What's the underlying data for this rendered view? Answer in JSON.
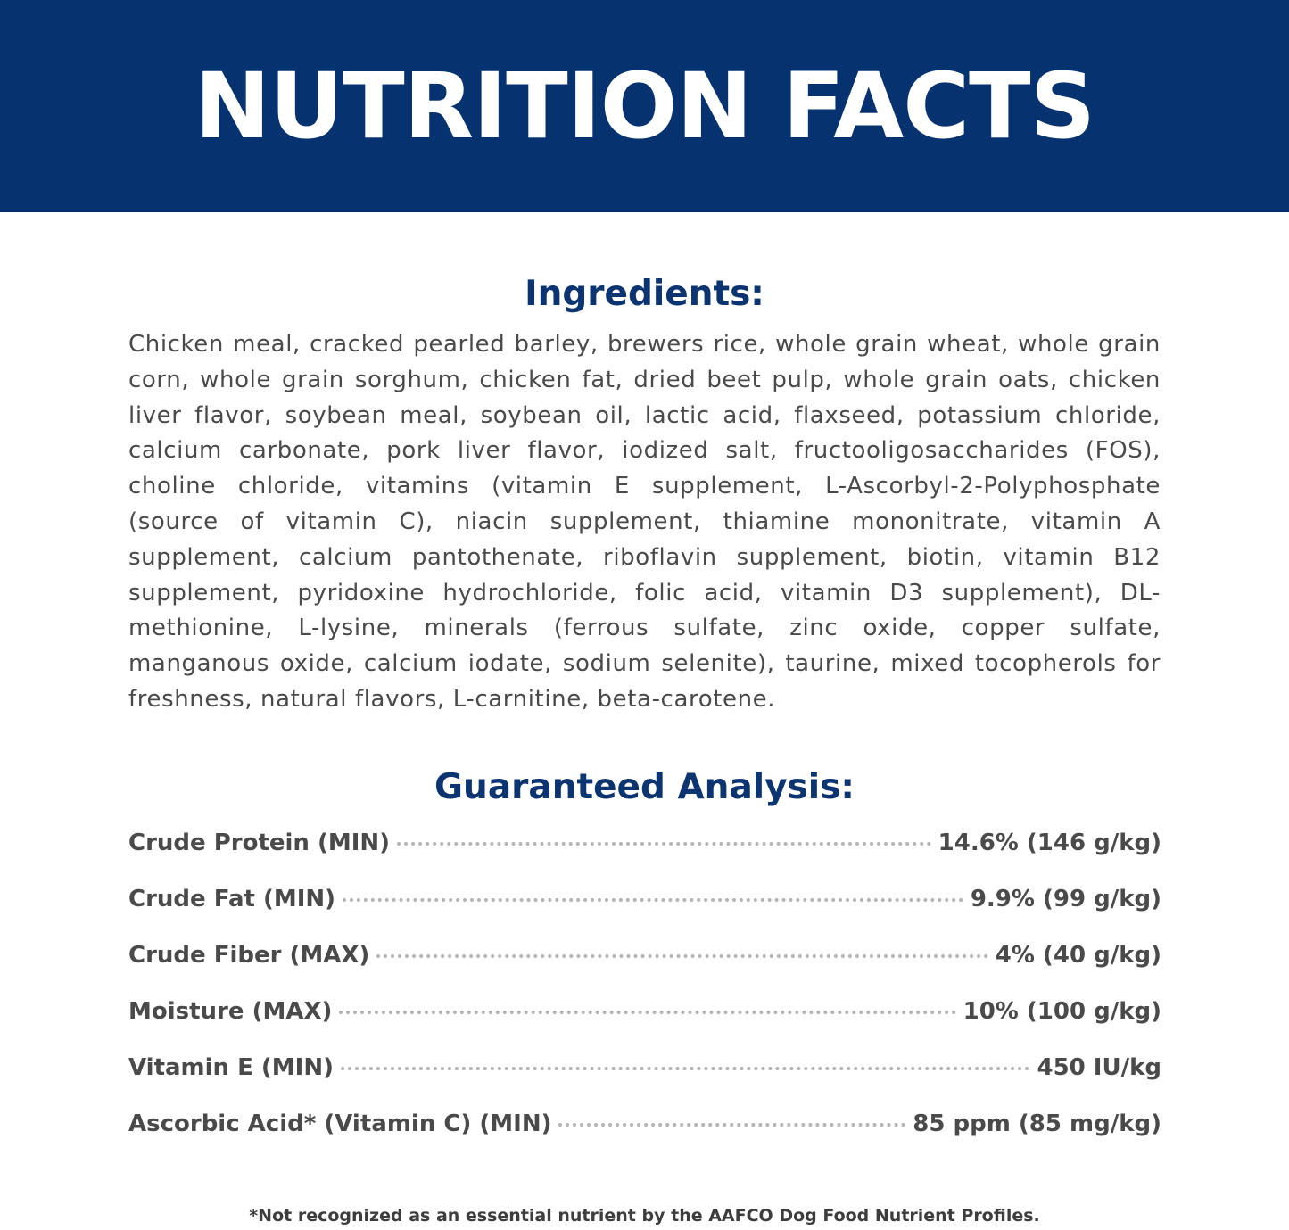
{
  "banner": {
    "title": "NUTRITION FACTS",
    "color": "#06336f"
  },
  "ingredients": {
    "heading": "Ingredients:",
    "text": "Chicken meal, cracked pearled barley, brewers rice, whole grain wheat, whole grain corn, whole grain sorghum, chicken fat, dried beet pulp, whole grain oats, chicken liver flavor, soybean meal, soybean oil, lactic acid, flaxseed, potassium chloride, calcium carbonate, pork liver flavor, iodized salt, fructooligosaccharides (FOS), choline chloride, vitamins (vitamin E supplement, L-Ascorbyl-2-Polyphosphate (source of vitamin C), niacin supplement, thiamine mononitrate, vitamin A supplement, calcium pantothenate, riboflavin supplement, biotin, vitamin B12 supplement, pyridoxine hydrochloride, folic acid, vitamin D3 supplement), DL-methionine, L-lysine, minerals (ferrous sulfate, zinc oxide, copper sulfate, manganous oxide, calcium iodate, sodium selenite), taurine, mixed tocopherols for freshness, natural flavors, L-carnitine, beta-carotene."
  },
  "analysis": {
    "heading": "Guaranteed Analysis:",
    "rows": [
      {
        "label": "Crude Protein (MIN)",
        "value": "14.6% (146 g/kg)"
      },
      {
        "label": "Crude Fat (MIN)",
        "value": "9.9% (99 g/kg)"
      },
      {
        "label": "Crude Fiber (MAX)",
        "value": "4% (40 g/kg)"
      },
      {
        "label": "Moisture (MAX)",
        "value": "10% (100 g/kg)"
      },
      {
        "label": "Vitamin E (MIN)",
        "value": "450 IU/kg"
      },
      {
        "label": "Ascorbic Acid* (Vitamin C) (MIN)",
        "value": "85 ppm (85 mg/kg)"
      }
    ]
  },
  "footnote": "*Not recognized as an essential nutrient by the AAFCO Dog Food Nutrient Profiles."
}
